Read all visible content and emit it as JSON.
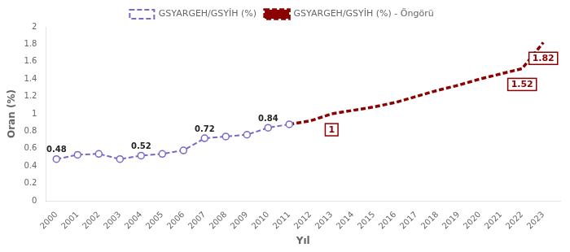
{
  "chart_data": {
    "type": "line",
    "xlabel": "Yıl",
    "ylabel": "Oran (%)",
    "series": [
      {
        "name": "GSYARGEH/GSYİH (%)",
        "color": "#7b68c8",
        "line_style": "dashed",
        "marker": "circle",
        "x": [
          2000,
          2001,
          2002,
          2003,
          2004,
          2005,
          2006,
          2007,
          2008,
          2009,
          2010,
          2011
        ],
        "values": [
          0.48,
          0.53,
          0.54,
          0.48,
          0.52,
          0.54,
          0.58,
          0.72,
          0.74,
          0.76,
          0.84,
          0.88
        ]
      },
      {
        "name": "GSYARGEH/GSYİH (%) - Öngörü",
        "color": "#8b0000",
        "line_style": "dashed",
        "marker": "none",
        "x": [
          2011,
          2012,
          2013,
          2014,
          2015,
          2016,
          2017,
          2018,
          2019,
          2020,
          2021,
          2022,
          2023
        ],
        "values": [
          0.88,
          0.92,
          1.0,
          1.04,
          1.08,
          1.13,
          1.2,
          1.27,
          1.33,
          1.4,
          1.46,
          1.52,
          1.82
        ]
      }
    ],
    "xlim": [
      1999.5,
      2023.8
    ],
    "xticks": [
      2000,
      2001,
      2002,
      2003,
      2004,
      2005,
      2006,
      2007,
      2008,
      2009,
      2010,
      2011,
      2012,
      2013,
      2014,
      2015,
      2016,
      2017,
      2018,
      2019,
      2020,
      2021,
      2022,
      2023
    ],
    "ylim": [
      0,
      2.0
    ],
    "yticks": [
      0,
      0.2,
      0.4,
      0.6,
      0.8,
      1.0,
      1.2,
      1.4,
      1.6,
      1.8,
      2.0
    ],
    "grid": false,
    "legend": "top",
    "annotations": [
      {
        "text": "0.48",
        "x": 2000,
        "y": 0.48
      },
      {
        "text": "0.52",
        "x": 2004,
        "y": 0.52
      },
      {
        "text": "0.72",
        "x": 2007,
        "y": 0.72
      },
      {
        "text": "0.84",
        "x": 2010,
        "y": 0.84
      },
      {
        "text": "1",
        "x": 2013,
        "y": 1.0,
        "color": "#8b0000"
      },
      {
        "text": "1.52",
        "x": 2022,
        "y": 1.52,
        "color": "#8b0000"
      },
      {
        "text": "1.82",
        "x": 2023,
        "y": 1.82,
        "color": "#8b0000"
      }
    ]
  }
}
